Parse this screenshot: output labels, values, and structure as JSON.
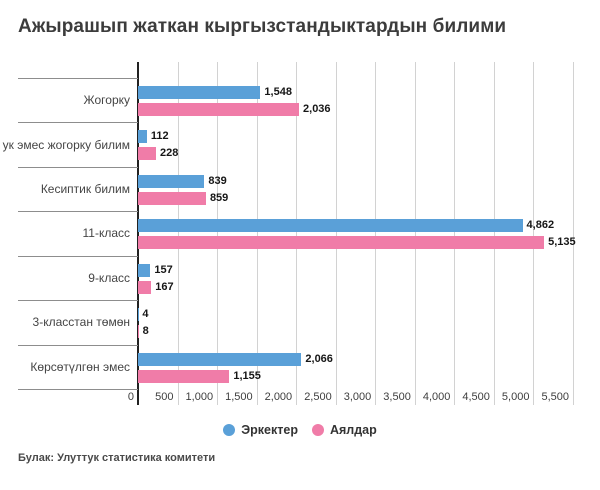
{
  "source": "Булак: Улуттук статистика комитети",
  "colors": {
    "men": "#5AA0D8",
    "women": "#F07CA8",
    "gridline": "#d2d2d2",
    "axis": "#222222",
    "separator": "#8d8d8d"
  },
  "chart_data": {
    "type": "bar",
    "orientation": "horizontal",
    "title": "Ажырашып жаткан кыргызстандыктардын билими",
    "xlabel": "",
    "ylabel": "",
    "categories": [
      "Жогорку",
      "ук эмес жогорку билим",
      "Кесиптик билим",
      "11-класс",
      "9-класс",
      "3-класстан төмөн",
      "Көрсөтүлгөн эмес"
    ],
    "series": [
      {
        "name": "Эркектер",
        "color": "#5AA0D8",
        "values": [
          1548,
          112,
          839,
          4862,
          157,
          4,
          2066
        ],
        "labels": [
          "1,548",
          "112",
          "839",
          "4,862",
          "157",
          "4",
          "2,066"
        ]
      },
      {
        "name": "Аялдар",
        "color": "#F07CA8",
        "values": [
          2036,
          228,
          859,
          5135,
          167,
          8,
          1155
        ],
        "labels": [
          "2,036",
          "228",
          "859",
          "5,135",
          "167",
          "8",
          "1,155"
        ]
      }
    ],
    "xticks": [
      "0",
      "500",
      "1,000",
      "1,500",
      "2,000",
      "2,500",
      "3,000",
      "3,500",
      "4,000",
      "4,500",
      "5,000",
      "5,500"
    ],
    "xlim": [
      0,
      5500
    ],
    "grid": true,
    "legend_position": "bottom"
  }
}
